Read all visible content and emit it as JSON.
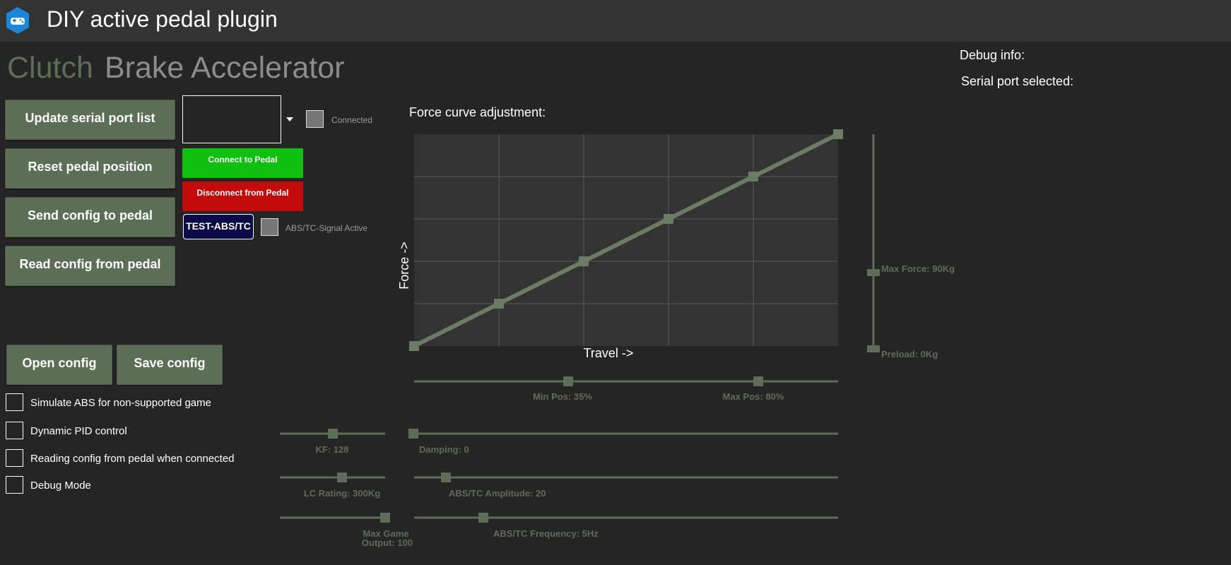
{
  "app": {
    "title": "DIY active pedal plugin",
    "icon": "gamepad-icon"
  },
  "tabs": [
    {
      "label": "Clutch",
      "active": true
    },
    {
      "label": "Brake",
      "active": false
    },
    {
      "label": "Accelerator",
      "active": false
    }
  ],
  "debug": {
    "info_label": "Debug info:",
    "serial_port_label": "Serial port selected:"
  },
  "buttons": {
    "update_serial": "Update serial port list",
    "reset_position": "Reset pedal position",
    "send_config": "Send config to pedal",
    "read_config": "Read config from pedal",
    "open_config": "Open config",
    "save_config": "Save config",
    "connect": "Connect to Pedal",
    "disconnect": "Disconnect from Pedal",
    "test_abs": "TEST-ABS/TC"
  },
  "serial_port": {
    "selected_value": "",
    "dropdown_icon": "chevron-down-icon"
  },
  "indicators": {
    "connected_label": "Connected",
    "abs_active_label": "ABS/TC-Signal Active"
  },
  "checkboxes": [
    {
      "label": "Simulate ABS for non-supported game",
      "checked": false
    },
    {
      "label": "Dynamic PID control",
      "checked": false
    },
    {
      "label": "Reading config from pedal when connected",
      "checked": false
    },
    {
      "label": "Debug Mode",
      "checked": false
    }
  ],
  "colors": {
    "accent": "#5d6e57",
    "curve": "#6a7d63",
    "connect": "#10c010",
    "disconnect": "#c40b0b",
    "test_btn": "#0b0b4a",
    "background": "#252525",
    "titlebar": "#333333",
    "tab_inactive": "#8c8c8c"
  },
  "chart_data": {
    "type": "line",
    "title": "Force curve adjustment:",
    "xlabel": "Travel ->",
    "ylabel": "Force ->",
    "x": [
      0,
      20,
      40,
      60,
      80,
      100
    ],
    "y": [
      0,
      20,
      40,
      60,
      80,
      100
    ],
    "xlim": [
      0,
      100
    ],
    "ylim": [
      0,
      100
    ],
    "grid": true
  },
  "sliders": {
    "max_force": {
      "label": "Max Force: 90Kg",
      "value_fraction": 0.34
    },
    "preload": {
      "label": "Preload:  0Kg",
      "value_fraction": 0.0
    },
    "min_pos": {
      "label": "Min Pos: 35%",
      "value": 35
    },
    "max_pos": {
      "label": "Max Pos: 80%",
      "value": 80
    },
    "kf": {
      "label": "KF: 128",
      "value_fraction": 0.5
    },
    "damping": {
      "label": "Damping: 0",
      "value_fraction": 0.0
    },
    "lc_rating": {
      "label": "LC Rating: 300Kg",
      "value_fraction": 0.59
    },
    "abs_amplitude": {
      "label": "ABS/TC Amplitude: 20",
      "value_fraction": 0.08
    },
    "max_game_output": {
      "label_line1": "Max Game",
      "label_line2": "Output: 100",
      "value_fraction": 1.0
    },
    "abs_frequency": {
      "label": "ABS/TC Frequency: 5Hz",
      "value_fraction": 0.17
    }
  }
}
